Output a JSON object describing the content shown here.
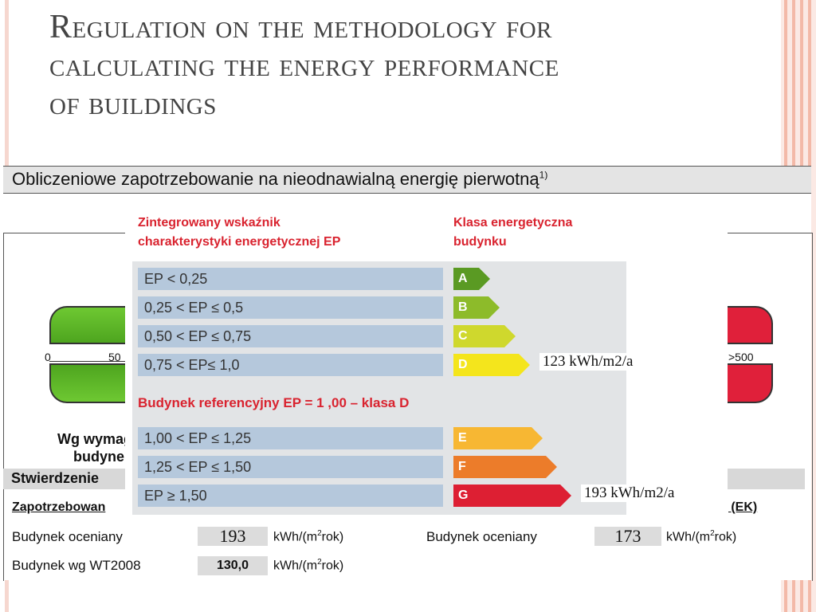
{
  "slide": {
    "title_lines": [
      "Regulation on the methodology for",
      "calculating the energy performance",
      "of buildings"
    ]
  },
  "document": {
    "header": "Obliczeniowe zapotrzebowanie na nieodnawialną energię pierwotną",
    "header_sup": "1)",
    "scale_ticks": [
      "0",
      "50",
      ">500"
    ],
    "wg_label_1": "Wg wymag",
    "wg_label_2": "budynek",
    "stw_label": "Stwierdzenie",
    "zap_label": "Zapotrzebowan",
    "ek_label": "ą (EK)",
    "rows": [
      {
        "label": "Budynek oceniany",
        "value": "193",
        "unit": "kWh/(m",
        "unit_sup": "2",
        "unit_end": "rok)"
      },
      {
        "label": "Budynek wg WT2008",
        "value": "130,0",
        "unit": "kWh/(m",
        "unit_sup": "2",
        "unit_end": "rok)"
      }
    ],
    "right_row": {
      "label": "Budynek oceniany",
      "value": "173",
      "unit": "kWh/(m",
      "unit_sup": "2",
      "unit_end": "rok)"
    }
  },
  "overlay": {
    "head_left_1": "Zintegrowany wskaźnik",
    "head_left_2": "charakterystyki energetycznej EP",
    "head_right_1": "Klasa energetyczna",
    "head_right_2": "budynku",
    "reference": "Budynek referencyjny EP = 1 ,00 – klasa D",
    "classes": [
      {
        "range": "EP < 0,25",
        "class": "A",
        "color": "#5a9a23"
      },
      {
        "range": "0,25 < EP ≤ 0,5",
        "class": "B",
        "color": "#8dbb2a"
      },
      {
        "range": "0,50 < EP ≤ 0,75",
        "class": "C",
        "color": "#cfd82d"
      },
      {
        "range": "0,75 < EP≤ 1,0",
        "class": "D",
        "color": "#f4e51c"
      },
      {
        "range": "1,00 < EP ≤ 1,25",
        "class": "E",
        "color": "#f7b733"
      },
      {
        "range": "1,25 < EP ≤ 1,50",
        "class": "F",
        "color": "#ec7c2a"
      },
      {
        "range": "EP ≥ 1,50",
        "class": "G",
        "color": "#dd1f33"
      }
    ],
    "note_d": "123 kWh/m2/a",
    "note_g": "193 kWh/m2/a"
  },
  "colors": {
    "accent_red": "#d9232f",
    "cell_blue": "#b5c8dc",
    "frame": "#f3b9a8"
  }
}
